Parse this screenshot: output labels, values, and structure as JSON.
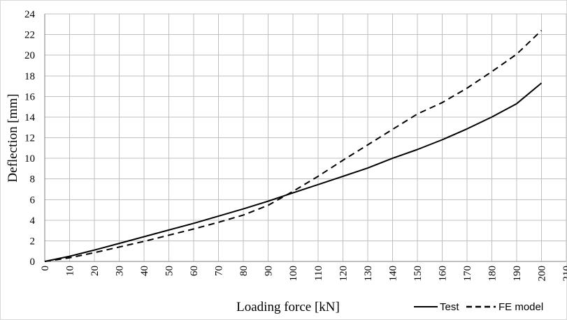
{
  "chart_data": {
    "type": "line",
    "title": "",
    "xlabel": "Loading force [kN]",
    "ylabel": "Deflection [mm]",
    "xlim": [
      0,
      210
    ],
    "ylim": [
      0,
      24
    ],
    "x_ticks": [
      "0",
      "10",
      "20",
      "30",
      "40",
      "50",
      "60",
      "70",
      "80",
      "90",
      "100",
      "110",
      "120",
      "130",
      "140",
      "150",
      "160",
      "170",
      "180",
      "190",
      "200",
      "210"
    ],
    "y_ticks": [
      "0",
      "2",
      "4",
      "6",
      "8",
      "10",
      "12",
      "14",
      "16",
      "18",
      "20",
      "22",
      "24"
    ],
    "grid": true,
    "legend_position": "bottom-right",
    "series": [
      {
        "name": "Test",
        "line_style": "solid",
        "color": "#000000",
        "x": [
          0,
          10,
          20,
          30,
          40,
          50,
          60,
          70,
          80,
          90,
          100,
          110,
          120,
          130,
          140,
          150,
          160,
          170,
          180,
          190,
          200
        ],
        "y": [
          0,
          0.5,
          1.1,
          1.75,
          2.4,
          3.05,
          3.7,
          4.4,
          5.1,
          5.85,
          6.65,
          7.45,
          8.25,
          9.05,
          10.0,
          10.85,
          11.8,
          12.85,
          14.0,
          15.3,
          17.3
        ]
      },
      {
        "name": "FE model",
        "line_style": "dashed",
        "color": "#000000",
        "x": [
          0,
          10,
          20,
          30,
          40,
          50,
          60,
          70,
          80,
          90,
          100,
          110,
          120,
          130,
          140,
          150,
          160,
          170,
          180,
          190,
          200
        ],
        "y": [
          0,
          0.35,
          0.85,
          1.4,
          1.95,
          2.55,
          3.15,
          3.8,
          4.5,
          5.45,
          6.8,
          8.25,
          9.8,
          11.3,
          12.8,
          14.3,
          15.4,
          16.8,
          18.4,
          20.1,
          22.4
        ]
      }
    ]
  }
}
